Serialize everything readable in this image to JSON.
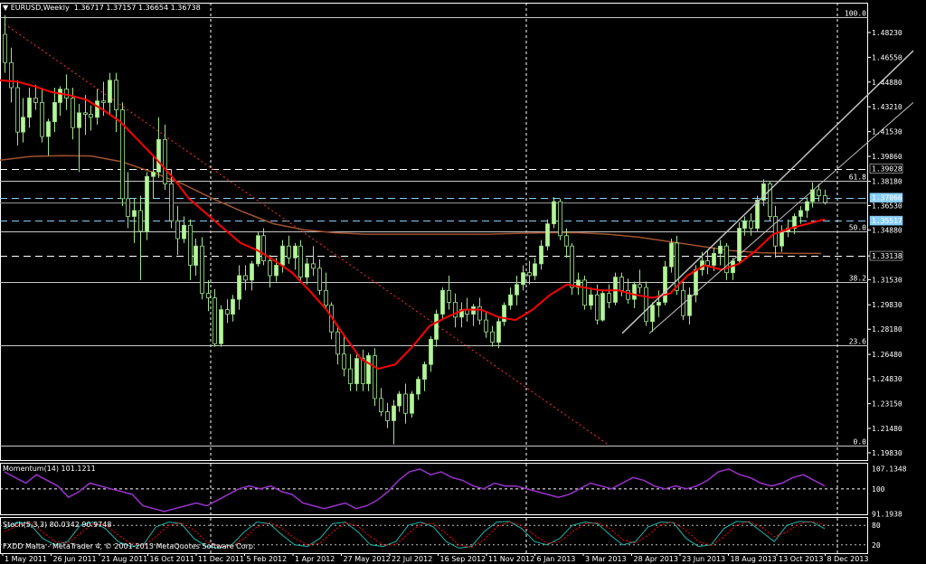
{
  "header": {
    "symbol_label": "EURUSD,Weekly",
    "ohlc": "1.36717 1.37157 1.36654 1.36738"
  },
  "momentum_label": "Momentum(14) 101.1211",
  "stoch_label": "Stoch(5,3,3) 80.0342 90.9748",
  "copyright": "FXDD Malta - MetaTrader 4, © 2001-2013 MetaQuotes Software Corp.",
  "colors": {
    "background": "#000000",
    "bull": "#b6f59a",
    "bear": "#000000",
    "wick": "#9ee58a",
    "ma_fast": "#ff0000",
    "ma_slow": "#a0522d",
    "trend": "#c0c0c0",
    "downtrend": "#ff3030",
    "momentum": "#9932cc",
    "stoch_main": "#20b2aa",
    "stoch_signal": "#ff0000",
    "grid": "#ffffff"
  },
  "chart_data": [
    {
      "type": "candlestick",
      "title": "EURUSD,Weekly",
      "price_axis_labels": [
        "1.49930",
        "1.48230",
        "1.46550",
        "1.44880",
        "1.43210",
        "1.41530",
        "1.39860",
        "1.38180",
        "1.36530",
        "1.34880",
        "1.33130",
        "1.31530",
        "1.29830",
        "1.28180",
        "1.26480",
        "1.24830",
        "1.23150",
        "1.21480",
        "1.19830"
      ],
      "price_tags": [
        "1.39028",
        "1.37066",
        "1.35517",
        "1.33138"
      ],
      "fibonacci": [
        {
          "label": "100.0",
          "price": 1.4925
        },
        {
          "label": "61.8",
          "price": 1.3821
        },
        {
          "label": "50.0",
          "price": 1.3478
        },
        {
          "label": "38.2",
          "price": 1.3134
        },
        {
          "label": "23.6",
          "price": 1.2712
        },
        {
          "label": "0.0",
          "price": 1.2034
        }
      ],
      "x_labels": [
        "1 May 2011",
        "26 Jun 2011",
        "21 Aug 2011",
        "16 Oct 2011",
        "11 Dec 2011",
        "5 Feb 2012",
        "1 Apr 2012",
        "27 May 2012",
        "22 Jul 2012",
        "16 Sep 2012",
        "11 Nov 2012",
        "6 Jan 2013",
        "3 Mar 2013",
        "28 Apr 2013",
        "23 Jun 2013",
        "18 Aug 2013",
        "13 Oct 2013",
        "8 Dec 2013"
      ],
      "ylim": [
        1.1934,
        1.5024
      ],
      "candles": [
        [
          1.481,
          1.494,
          1.455,
          1.462
        ],
        [
          1.462,
          1.472,
          1.435,
          1.445
        ],
        [
          1.445,
          1.45,
          1.406,
          1.415
        ],
        [
          1.415,
          1.438,
          1.408,
          1.425
        ],
        [
          1.425,
          1.445,
          1.418,
          1.438
        ],
        [
          1.438,
          1.447,
          1.43,
          1.435
        ],
        [
          1.435,
          1.445,
          1.408,
          1.412
        ],
        [
          1.412,
          1.424,
          1.399,
          1.422
        ],
        [
          1.422,
          1.445,
          1.415,
          1.435
        ],
        [
          1.435,
          1.446,
          1.426,
          1.444
        ],
        [
          1.444,
          1.454,
          1.43,
          1.438
        ],
        [
          1.438,
          1.445,
          1.41,
          1.418
        ],
        [
          1.418,
          1.434,
          1.388,
          1.428
        ],
        [
          1.428,
          1.44,
          1.413,
          1.427
        ],
        [
          1.427,
          1.433,
          1.416,
          1.425
        ],
        [
          1.425,
          1.444,
          1.42,
          1.436
        ],
        [
          1.436,
          1.449,
          1.426,
          1.435
        ],
        [
          1.435,
          1.455,
          1.427,
          1.45
        ],
        [
          1.45,
          1.455,
          1.415,
          1.43
        ],
        [
          1.43,
          1.435,
          1.365,
          1.37
        ],
        [
          1.37,
          1.388,
          1.35,
          1.358
        ],
        [
          1.358,
          1.37,
          1.34,
          1.362
        ],
        [
          1.362,
          1.372,
          1.315,
          1.348
        ],
        [
          1.348,
          1.388,
          1.342,
          1.385
        ],
        [
          1.385,
          1.399,
          1.37,
          1.388
        ],
        [
          1.388,
          1.425,
          1.384,
          1.41
        ],
        [
          1.41,
          1.42,
          1.376,
          1.38
        ],
        [
          1.38,
          1.39,
          1.35,
          1.355
        ],
        [
          1.355,
          1.365,
          1.332,
          1.343
        ],
        [
          1.343,
          1.358,
          1.34,
          1.352
        ],
        [
          1.352,
          1.356,
          1.315,
          1.325
        ],
        [
          1.325,
          1.343,
          1.318,
          1.338
        ],
        [
          1.338,
          1.344,
          1.302,
          1.306
        ],
        [
          1.306,
          1.315,
          1.294,
          1.303
        ],
        [
          1.303,
          1.309,
          1.27,
          1.272
        ],
        [
          1.272,
          1.298,
          1.27,
          1.295
        ],
        [
          1.295,
          1.302,
          1.286,
          1.292
        ],
        [
          1.292,
          1.305,
          1.287,
          1.302
        ],
        [
          1.302,
          1.325,
          1.295,
          1.318
        ],
        [
          1.318,
          1.325,
          1.308,
          1.315
        ],
        [
          1.315,
          1.328,
          1.308,
          1.326
        ],
        [
          1.326,
          1.348,
          1.324,
          1.345
        ],
        [
          1.345,
          1.35,
          1.325,
          1.328
        ],
        [
          1.328,
          1.332,
          1.31,
          1.318
        ],
        [
          1.318,
          1.33,
          1.314,
          1.325
        ],
        [
          1.325,
          1.342,
          1.32,
          1.338
        ],
        [
          1.338,
          1.345,
          1.326,
          1.33
        ],
        [
          1.33,
          1.34,
          1.322,
          1.338
        ],
        [
          1.338,
          1.342,
          1.313,
          1.317
        ],
        [
          1.317,
          1.33,
          1.312,
          1.326
        ],
        [
          1.326,
          1.338,
          1.318,
          1.323
        ],
        [
          1.323,
          1.329,
          1.305,
          1.308
        ],
        [
          1.308,
          1.32,
          1.295,
          1.298
        ],
        [
          1.298,
          1.3,
          1.275,
          1.28
        ],
        [
          1.28,
          1.285,
          1.258,
          1.265
        ],
        [
          1.265,
          1.278,
          1.25,
          1.255
        ],
        [
          1.255,
          1.265,
          1.24,
          1.245
        ],
        [
          1.245,
          1.265,
          1.24,
          1.262
        ],
        [
          1.262,
          1.268,
          1.24,
          1.245
        ],
        [
          1.245,
          1.266,
          1.24,
          1.264
        ],
        [
          1.264,
          1.269,
          1.23,
          1.235
        ],
        [
          1.235,
          1.242,
          1.223,
          1.226
        ],
        [
          1.226,
          1.232,
          1.215,
          1.22
        ],
        [
          1.22,
          1.234,
          1.204,
          1.23
        ],
        [
          1.23,
          1.24,
          1.226,
          1.238
        ],
        [
          1.238,
          1.245,
          1.218,
          1.225
        ],
        [
          1.225,
          1.24,
          1.222,
          1.238
        ],
        [
          1.238,
          1.25,
          1.234,
          1.248
        ],
        [
          1.248,
          1.26,
          1.24,
          1.258
        ],
        [
          1.258,
          1.277,
          1.253,
          1.275
        ],
        [
          1.275,
          1.295,
          1.27,
          1.292
        ],
        [
          1.292,
          1.31,
          1.288,
          1.308
        ],
        [
          1.308,
          1.318,
          1.295,
          1.3
        ],
        [
          1.3,
          1.306,
          1.283,
          1.29
        ],
        [
          1.29,
          1.3,
          1.283,
          1.295
        ],
        [
          1.295,
          1.303,
          1.287,
          1.292
        ],
        [
          1.292,
          1.299,
          1.284,
          1.297
        ],
        [
          1.297,
          1.303,
          1.285,
          1.288
        ],
        [
          1.288,
          1.293,
          1.276,
          1.28
        ],
        [
          1.28,
          1.284,
          1.27,
          1.273
        ],
        [
          1.273,
          1.29,
          1.269,
          1.287
        ],
        [
          1.287,
          1.3,
          1.284,
          1.298
        ],
        [
          1.298,
          1.31,
          1.295,
          1.305
        ],
        [
          1.305,
          1.318,
          1.298,
          1.312
        ],
        [
          1.312,
          1.325,
          1.308,
          1.32
        ],
        [
          1.32,
          1.328,
          1.312,
          1.318
        ],
        [
          1.318,
          1.33,
          1.315,
          1.326
        ],
        [
          1.326,
          1.342,
          1.322,
          1.338
        ],
        [
          1.338,
          1.356,
          1.335,
          1.353
        ],
        [
          1.353,
          1.371,
          1.35,
          1.368
        ],
        [
          1.368,
          1.37,
          1.342,
          1.345
        ],
        [
          1.345,
          1.35,
          1.33,
          1.338
        ],
        [
          1.338,
          1.34,
          1.305,
          1.31
        ],
        [
          1.31,
          1.32,
          1.305,
          1.315
        ],
        [
          1.315,
          1.318,
          1.295,
          1.298
        ],
        [
          1.298,
          1.31,
          1.295,
          1.305
        ],
        [
          1.305,
          1.312,
          1.285,
          1.288
        ],
        [
          1.288,
          1.308,
          1.287,
          1.306
        ],
        [
          1.306,
          1.312,
          1.296,
          1.3
        ],
        [
          1.3,
          1.32,
          1.298,
          1.317
        ],
        [
          1.317,
          1.32,
          1.304,
          1.308
        ],
        [
          1.308,
          1.316,
          1.299,
          1.302
        ],
        [
          1.302,
          1.314,
          1.296,
          1.312
        ],
        [
          1.312,
          1.322,
          1.306,
          1.31
        ],
        [
          1.31,
          1.314,
          1.284,
          1.287
        ],
        [
          1.287,
          1.3,
          1.28,
          1.298
        ],
        [
          1.298,
          1.308,
          1.29,
          1.3
        ],
        [
          1.3,
          1.328,
          1.298,
          1.324
        ],
        [
          1.324,
          1.343,
          1.32,
          1.34
        ],
        [
          1.34,
          1.345,
          1.305,
          1.308
        ],
        [
          1.308,
          1.314,
          1.288,
          1.291
        ],
        [
          1.291,
          1.31,
          1.285,
          1.305
        ],
        [
          1.305,
          1.325,
          1.3,
          1.322
        ],
        [
          1.322,
          1.334,
          1.318,
          1.328
        ],
        [
          1.328,
          1.335,
          1.319,
          1.325
        ],
        [
          1.325,
          1.337,
          1.321,
          1.333
        ],
        [
          1.333,
          1.342,
          1.325,
          1.338
        ],
        [
          1.338,
          1.34,
          1.315,
          1.32
        ],
        [
          1.32,
          1.33,
          1.315,
          1.328
        ],
        [
          1.328,
          1.354,
          1.326,
          1.35
        ],
        [
          1.35,
          1.358,
          1.345,
          1.355
        ],
        [
          1.355,
          1.36,
          1.345,
          1.35
        ],
        [
          1.35,
          1.372,
          1.348,
          1.369
        ],
        [
          1.369,
          1.383,
          1.365,
          1.38
        ],
        [
          1.38,
          1.382,
          1.355,
          1.358
        ],
        [
          1.358,
          1.365,
          1.33,
          1.338
        ],
        [
          1.338,
          1.352,
          1.334,
          1.348
        ],
        [
          1.348,
          1.356,
          1.344,
          1.35
        ],
        [
          1.35,
          1.36,
          1.346,
          1.358
        ],
        [
          1.358,
          1.365,
          1.353,
          1.362
        ],
        [
          1.362,
          1.371,
          1.357,
          1.368
        ],
        [
          1.368,
          1.381,
          1.364,
          1.376
        ],
        [
          1.376,
          1.38,
          1.368,
          1.372
        ],
        [
          1.372,
          1.376,
          1.366,
          1.3674
        ]
      ],
      "ma_fast": [
        1.45,
        1.449,
        1.446,
        1.442,
        1.44,
        1.437,
        1.43,
        1.422,
        1.41,
        1.398,
        1.385,
        1.37,
        1.36,
        1.35,
        1.34,
        1.335,
        1.328,
        1.32,
        1.308,
        1.295,
        1.278,
        1.262,
        1.255,
        1.258,
        1.27,
        1.284,
        1.29,
        1.295,
        1.295,
        1.29,
        1.288,
        1.295,
        1.305,
        1.312,
        1.31,
        1.308,
        1.308,
        1.305,
        1.303,
        1.306,
        1.318,
        1.325,
        1.322,
        1.326,
        1.335,
        1.346,
        1.35,
        1.353,
        1.356
      ],
      "ma_slow": [
        1.396,
        1.3985,
        1.399,
        1.3988,
        1.395,
        1.388,
        1.38,
        1.37,
        1.361,
        1.353,
        1.349,
        1.347,
        1.346,
        1.346,
        1.346,
        1.346,
        1.346,
        1.3465,
        1.347,
        1.347,
        1.346,
        1.344,
        1.341,
        1.338,
        1.335,
        1.3335,
        1.333,
        1.333
      ],
      "momentum": {
        "axis_labels": [
          "107.1348",
          "100",
          "91.1938"
        ],
        "ylim": [
          91.0,
          109.2
        ],
        "values": [
          106,
          104,
          102,
          105,
          103,
          101,
          97,
          99,
          102,
          101,
          100,
          99,
          98,
          94,
          93,
          92,
          93,
          94,
          95,
          94,
          96,
          98,
          100,
          101,
          100,
          101,
          99,
          98,
          95,
          94,
          93,
          94,
          95,
          93,
          94,
          96,
          99,
          103,
          106,
          107,
          105,
          106,
          104,
          103,
          101,
          100,
          102,
          101,
          101,
          100,
          99,
          98,
          97,
          98,
          100,
          102,
          101,
          100,
          102,
          104,
          103,
          101,
          100,
          101,
          100,
          101,
          103,
          106,
          107,
          105,
          104,
          102,
          101,
          102,
          104,
          105,
          103,
          101
        ]
      },
      "stochastic": {
        "axis_labels": [
          "80",
          "20"
        ],
        "ylim": [
          0,
          100
        ],
        "main": [
          70,
          90,
          85,
          40,
          20,
          30,
          80,
          90,
          70,
          30,
          15,
          20,
          75,
          90,
          85,
          40,
          15,
          10,
          20,
          60,
          90,
          85,
          50,
          20,
          15,
          40,
          85,
          90,
          60,
          20,
          15,
          30,
          80,
          90,
          75,
          30,
          10,
          15,
          60,
          90,
          92,
          70,
          30,
          20,
          40,
          80,
          90,
          85,
          50,
          20,
          30,
          75,
          90,
          88,
          40,
          15,
          20,
          70,
          92,
          90,
          60,
          30,
          80,
          92,
          90,
          70
        ],
        "signal": [
          60,
          80,
          88,
          60,
          30,
          25,
          55,
          85,
          80,
          50,
          25,
          18,
          45,
          80,
          88,
          65,
          30,
          15,
          15,
          40,
          75,
          88,
          70,
          40,
          20,
          25,
          60,
          88,
          78,
          45,
          20,
          20,
          55,
          85,
          85,
          55,
          20,
          12,
          35,
          75,
          90,
          80,
          50,
          25,
          30,
          60,
          85,
          88,
          70,
          35,
          25,
          50,
          82,
          90,
          65,
          30,
          18,
          45,
          80,
          92,
          75,
          45,
          60,
          85,
          92,
          82
        ]
      }
    }
  ]
}
